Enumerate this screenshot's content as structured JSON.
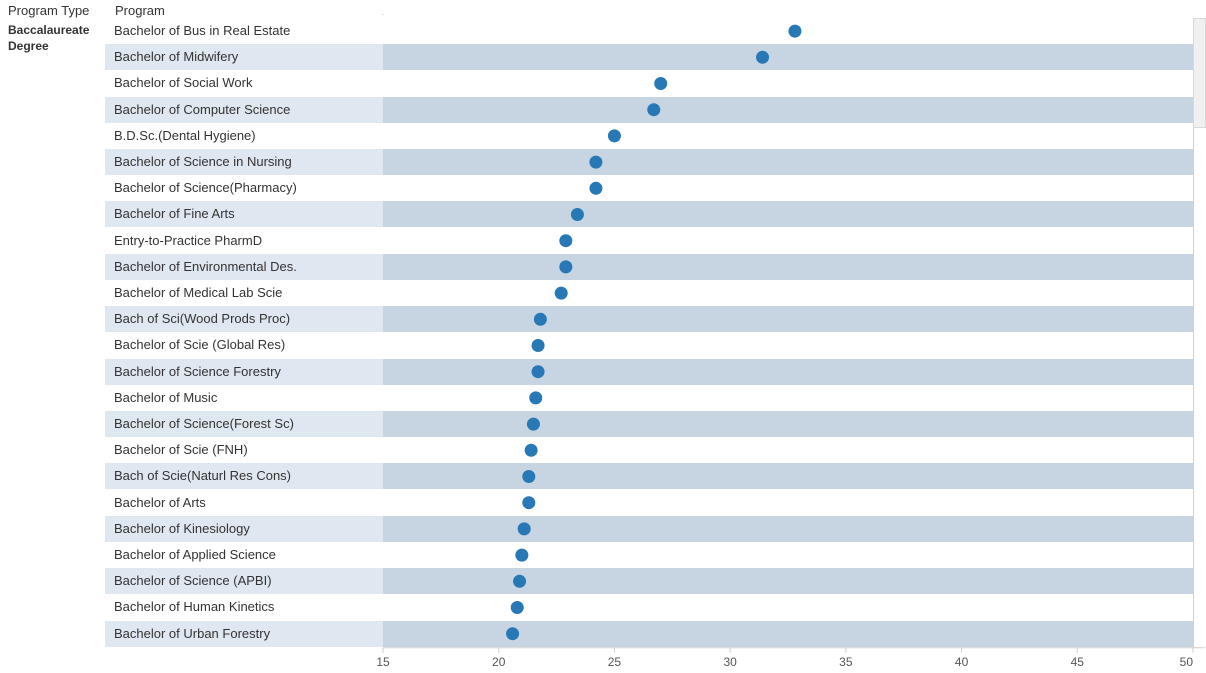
{
  "header": {
    "program_type_label": "Program Type",
    "program_label": "Program"
  },
  "program_type": "Baccalaureate Degree",
  "chart_data": {
    "type": "scatter",
    "title": "",
    "xlabel": "",
    "ylabel": "",
    "xlim": [
      15,
      50
    ],
    "xticks": [
      15,
      20,
      25,
      30,
      35,
      40,
      45,
      50
    ],
    "color": "#2878b5",
    "categories": [
      "Bachelor of Bus in Real Estate",
      "Bachelor of Midwifery",
      "Bachelor of Social Work",
      "Bachelor of Computer Science",
      "B.D.Sc.(Dental Hygiene)",
      "Bachelor of Science in Nursing",
      "Bachelor of Science(Pharmacy)",
      "Bachelor of Fine Arts",
      "Entry-to-Practice PharmD",
      "Bachelor of Environmental Des.",
      "Bachelor of Medical Lab Scie",
      "Bach of Sci(Wood Prods Proc)",
      "Bachelor of Scie (Global Res)",
      "Bachelor of Science Forestry",
      "Bachelor of Music",
      "Bachelor of Science(Forest Sc)",
      "Bachelor of Scie (FNH)",
      "Bach of Scie(Naturl Res Cons)",
      "Bachelor of Arts",
      "Bachelor of Kinesiology",
      "Bachelor of Applied Science",
      "Bachelor of Science (APBI)",
      "Bachelor of Human Kinetics",
      "Bachelor of Urban Forestry"
    ],
    "values": [
      32.8,
      31.4,
      27.0,
      26.7,
      25.0,
      24.2,
      24.2,
      23.4,
      22.9,
      22.9,
      22.7,
      21.8,
      21.7,
      21.7,
      21.6,
      21.5,
      21.4,
      21.3,
      21.3,
      21.1,
      21.0,
      20.9,
      20.8,
      20.6
    ]
  }
}
